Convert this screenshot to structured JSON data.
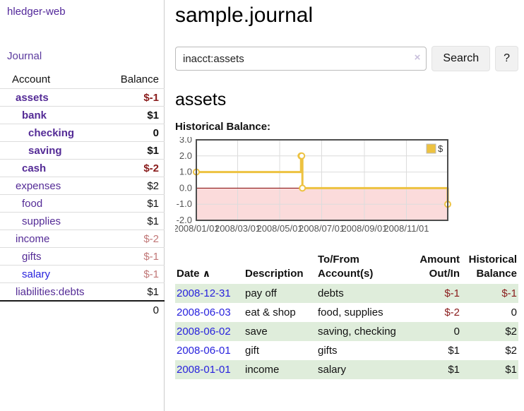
{
  "colors": {
    "accent_purple": "#542b96",
    "negative": "#891b1b",
    "negative_faded": "#c17777",
    "link_blue": "#2822dd",
    "row_green": "#dfeddb",
    "chart_line": "#edc240",
    "chart_negative_fill": "#fbdbdb",
    "chart_zero_line": "#800000",
    "chart_border": "#4d4d4d",
    "chart_grid": "#dcdcdc",
    "chart_tick_text": "#545454"
  },
  "app": {
    "brand": "hledger-web",
    "nav_journal": "Journal"
  },
  "sidebar": {
    "headers": {
      "account": "Account",
      "balance": "Balance"
    },
    "accounts": [
      {
        "name": "assets",
        "balance": "$-1"
      },
      {
        "name": "bank",
        "balance": "$1"
      },
      {
        "name": "checking",
        "balance": "0"
      },
      {
        "name": "saving",
        "balance": "$1"
      },
      {
        "name": "cash",
        "balance": "$-2"
      },
      {
        "name": "expenses",
        "balance": "$2"
      },
      {
        "name": "food",
        "balance": "$1"
      },
      {
        "name": "supplies",
        "balance": "$1"
      },
      {
        "name": "income",
        "balance": "$-2"
      },
      {
        "name": "gifts",
        "balance": "$-1"
      },
      {
        "name": "salary",
        "balance": "$-1"
      },
      {
        "name": "liabilities:debts",
        "balance": "$1"
      }
    ],
    "total": "0"
  },
  "main": {
    "title": "sample.journal",
    "search": {
      "value": "inacct:assets",
      "clear_icon": "×",
      "search_label": "Search",
      "help_label": "?"
    },
    "account_heading": "assets",
    "chart_label": "Historical Balance:"
  },
  "chart_data": {
    "type": "line",
    "step": true,
    "title": "Historical Balance:",
    "legend": "$",
    "legend_position": "top-right",
    "x_range": [
      "2008-01-01",
      "2008-12-31"
    ],
    "x_ticks": [
      "2008/01/01",
      "2008/03/01",
      "2008/05/01",
      "2008/07/01",
      "2008/09/01",
      "2008/11/01"
    ],
    "y_ticks": [
      3.0,
      2.0,
      1.0,
      0.0,
      -1.0,
      -2.0
    ],
    "ylim": [
      -2,
      3
    ],
    "grid": true,
    "series": [
      {
        "name": "$",
        "points": [
          [
            "2008-01-01",
            1
          ],
          [
            "2008-06-01",
            2
          ],
          [
            "2008-06-02",
            2
          ],
          [
            "2008-06-03",
            0
          ],
          [
            "2008-12-31",
            -1
          ]
        ]
      }
    ]
  },
  "register": {
    "headers": {
      "date": "Date",
      "sort_icon": "∧",
      "description": "Description",
      "accounts": "To/From Account(s)",
      "amount": "Amount Out/In",
      "balance": "Historical Balance"
    },
    "rows": [
      {
        "date": "2008-12-31",
        "description": "pay off",
        "accounts": "debts",
        "amount": "$-1",
        "balance": "$-1"
      },
      {
        "date": "2008-06-03",
        "description": "eat & shop",
        "accounts": "food, supplies",
        "amount": "$-2",
        "balance": "0"
      },
      {
        "date": "2008-06-02",
        "description": "save",
        "accounts": "saving, checking",
        "amount": "0",
        "balance": "$2"
      },
      {
        "date": "2008-06-01",
        "description": "gift",
        "accounts": "gifts",
        "amount": "$1",
        "balance": "$2"
      },
      {
        "date": "2008-01-01",
        "description": "income",
        "accounts": "salary",
        "amount": "$1",
        "balance": "$1"
      }
    ]
  }
}
